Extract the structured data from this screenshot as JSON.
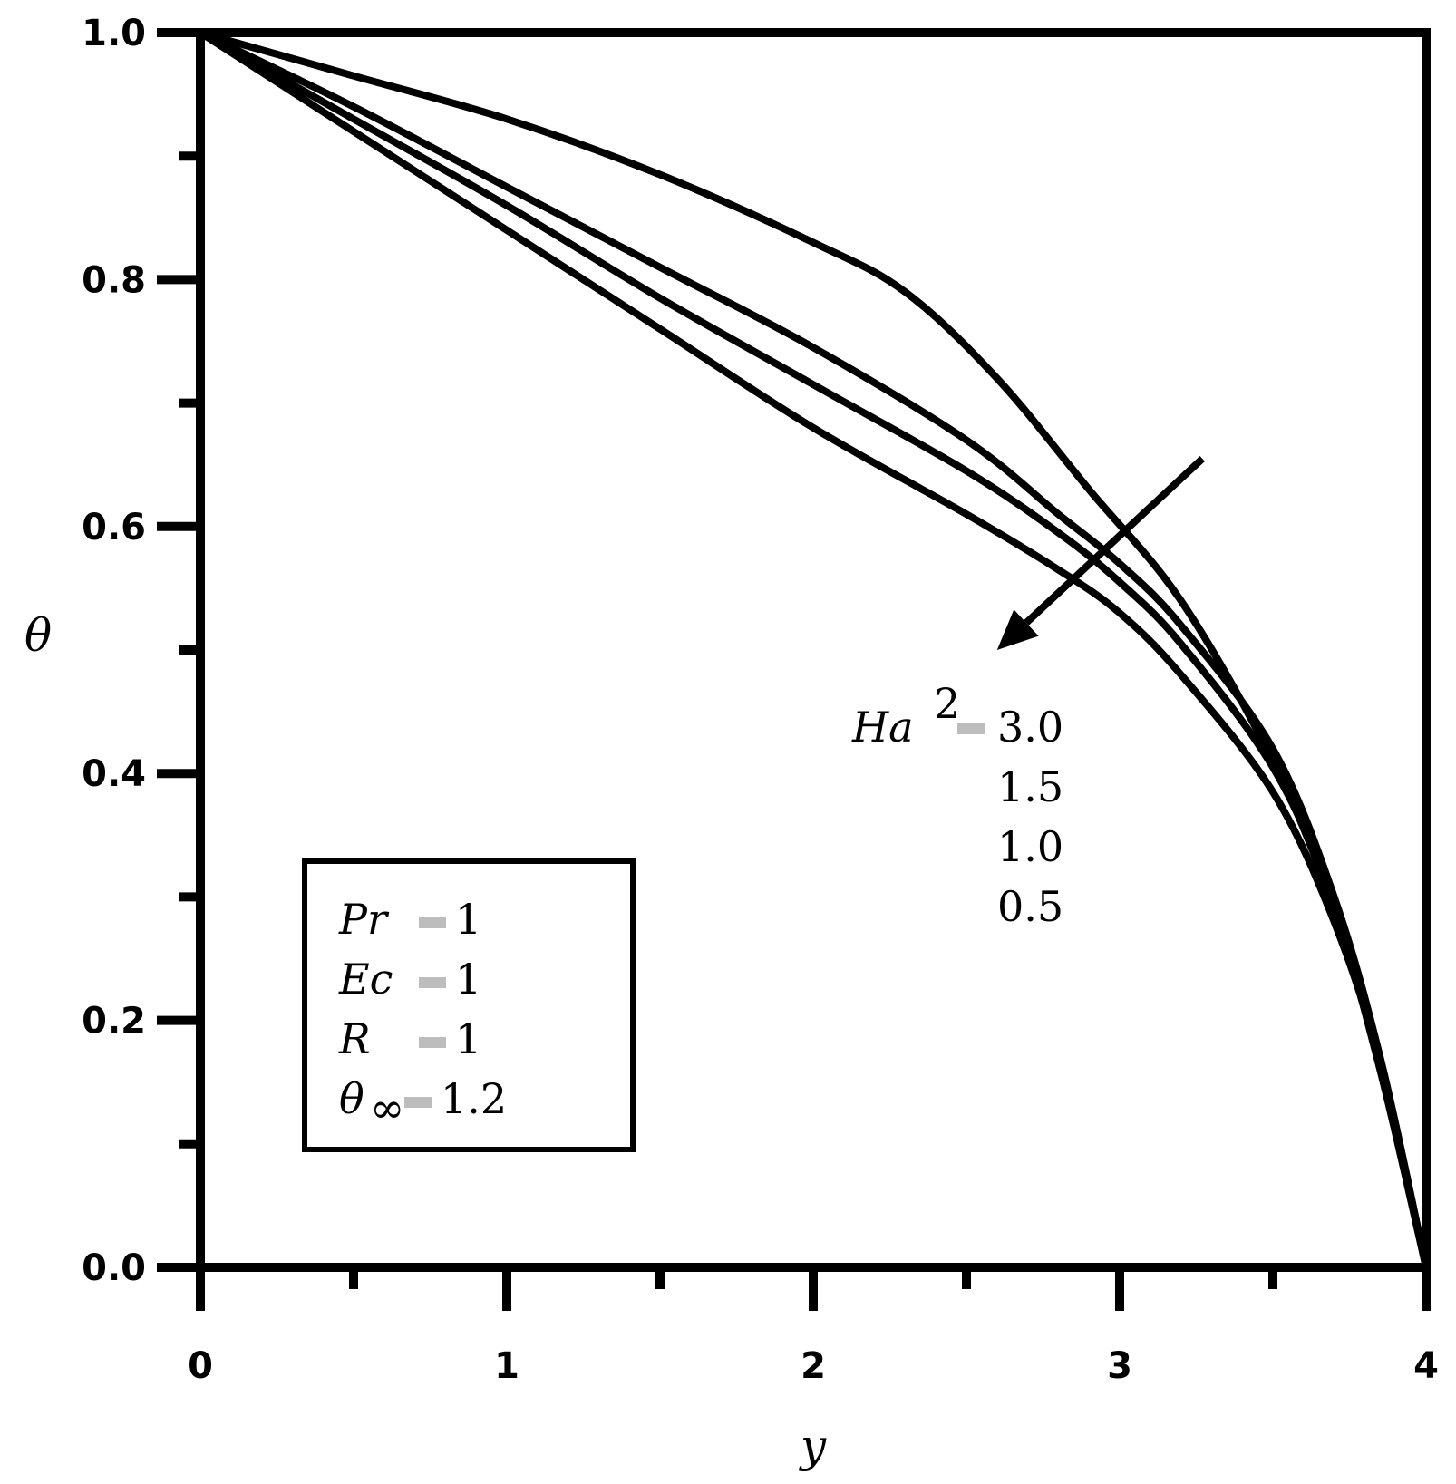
{
  "chart_data": {
    "type": "line",
    "title": "",
    "xlabel": "y",
    "ylabel": "θ",
    "xlim": [
      0,
      4
    ],
    "ylim": [
      0,
      1
    ],
    "x_major_ticks": [
      0,
      1,
      2,
      3,
      4
    ],
    "x_tick_labels": [
      "0",
      "1",
      "2",
      "3",
      "4"
    ],
    "x_minor_ticks": [
      0.5,
      1.5,
      2.5,
      3.5
    ],
    "y_major_ticks": [
      0,
      0.2,
      0.4,
      0.6,
      0.8,
      1.0
    ],
    "y_tick_labels": [
      "0.0",
      "0.2",
      "0.4",
      "0.6",
      "0.8",
      "1.0"
    ],
    "y_minor_ticks": [
      0.1,
      0.3,
      0.5,
      0.7,
      0.9
    ],
    "grid": false,
    "line_color": "#000000",
    "series": [
      {
        "parameter_value": "3.0",
        "points": [
          [
            0,
            1.0
          ],
          [
            0.5,
            0.965
          ],
          [
            1,
            0.93
          ],
          [
            1.5,
            0.885
          ],
          [
            2,
            0.83
          ],
          [
            2.3,
            0.79
          ],
          [
            2.6,
            0.72
          ],
          [
            2.9,
            0.63
          ],
          [
            3.2,
            0.54
          ],
          [
            3.5,
            0.41
          ],
          [
            3.7,
            0.29
          ],
          [
            3.85,
            0.16
          ],
          [
            4,
            0.0
          ]
        ]
      },
      {
        "parameter_value": "1.5",
        "points": [
          [
            0,
            1.0
          ],
          [
            0.5,
            0.94
          ],
          [
            1,
            0.875
          ],
          [
            1.5,
            0.81
          ],
          [
            2,
            0.745
          ],
          [
            2.5,
            0.67
          ],
          [
            2.8,
            0.61
          ],
          [
            3.0,
            0.57
          ],
          [
            3.2,
            0.52
          ],
          [
            3.5,
            0.42
          ],
          [
            3.7,
            0.3
          ],
          [
            3.85,
            0.17
          ],
          [
            4,
            0.0
          ]
        ]
      },
      {
        "parameter_value": "1.0",
        "points": [
          [
            0,
            1.0
          ],
          [
            0.5,
            0.93
          ],
          [
            1,
            0.86
          ],
          [
            1.5,
            0.785
          ],
          [
            2,
            0.715
          ],
          [
            2.5,
            0.645
          ],
          [
            2.8,
            0.595
          ],
          [
            3.0,
            0.555
          ],
          [
            3.2,
            0.505
          ],
          [
            3.5,
            0.405
          ],
          [
            3.7,
            0.295
          ],
          [
            3.85,
            0.17
          ],
          [
            4,
            0.0
          ]
        ]
      },
      {
        "parameter_value": "0.5",
        "points": [
          [
            0,
            1.0
          ],
          [
            0.5,
            0.92
          ],
          [
            1,
            0.84
          ],
          [
            1.5,
            0.76
          ],
          [
            2,
            0.68
          ],
          [
            2.5,
            0.61
          ],
          [
            2.8,
            0.565
          ],
          [
            3.0,
            0.53
          ],
          [
            3.2,
            0.48
          ],
          [
            3.5,
            0.385
          ],
          [
            3.7,
            0.28
          ],
          [
            3.85,
            0.165
          ],
          [
            4,
            0.0
          ]
        ]
      }
    ],
    "annotations": {
      "arrow": {
        "from": [
          3.27,
          0.655
        ],
        "to": [
          2.6,
          0.5
        ]
      },
      "parameter_label": {
        "name": "Ha",
        "superscript": "2",
        "values": [
          "3.0",
          "1.5",
          "1.0",
          "0.5"
        ]
      },
      "parameter_box": {
        "position": "lower-left",
        "rows": [
          {
            "name": "Pr",
            "subscript": "",
            "value": "1"
          },
          {
            "name": "Ec",
            "subscript": "",
            "value": "1"
          },
          {
            "name": "R",
            "subscript": "",
            "value": "1"
          },
          {
            "name": "θ",
            "subscript": "∞",
            "value": "1.2"
          }
        ]
      }
    }
  }
}
